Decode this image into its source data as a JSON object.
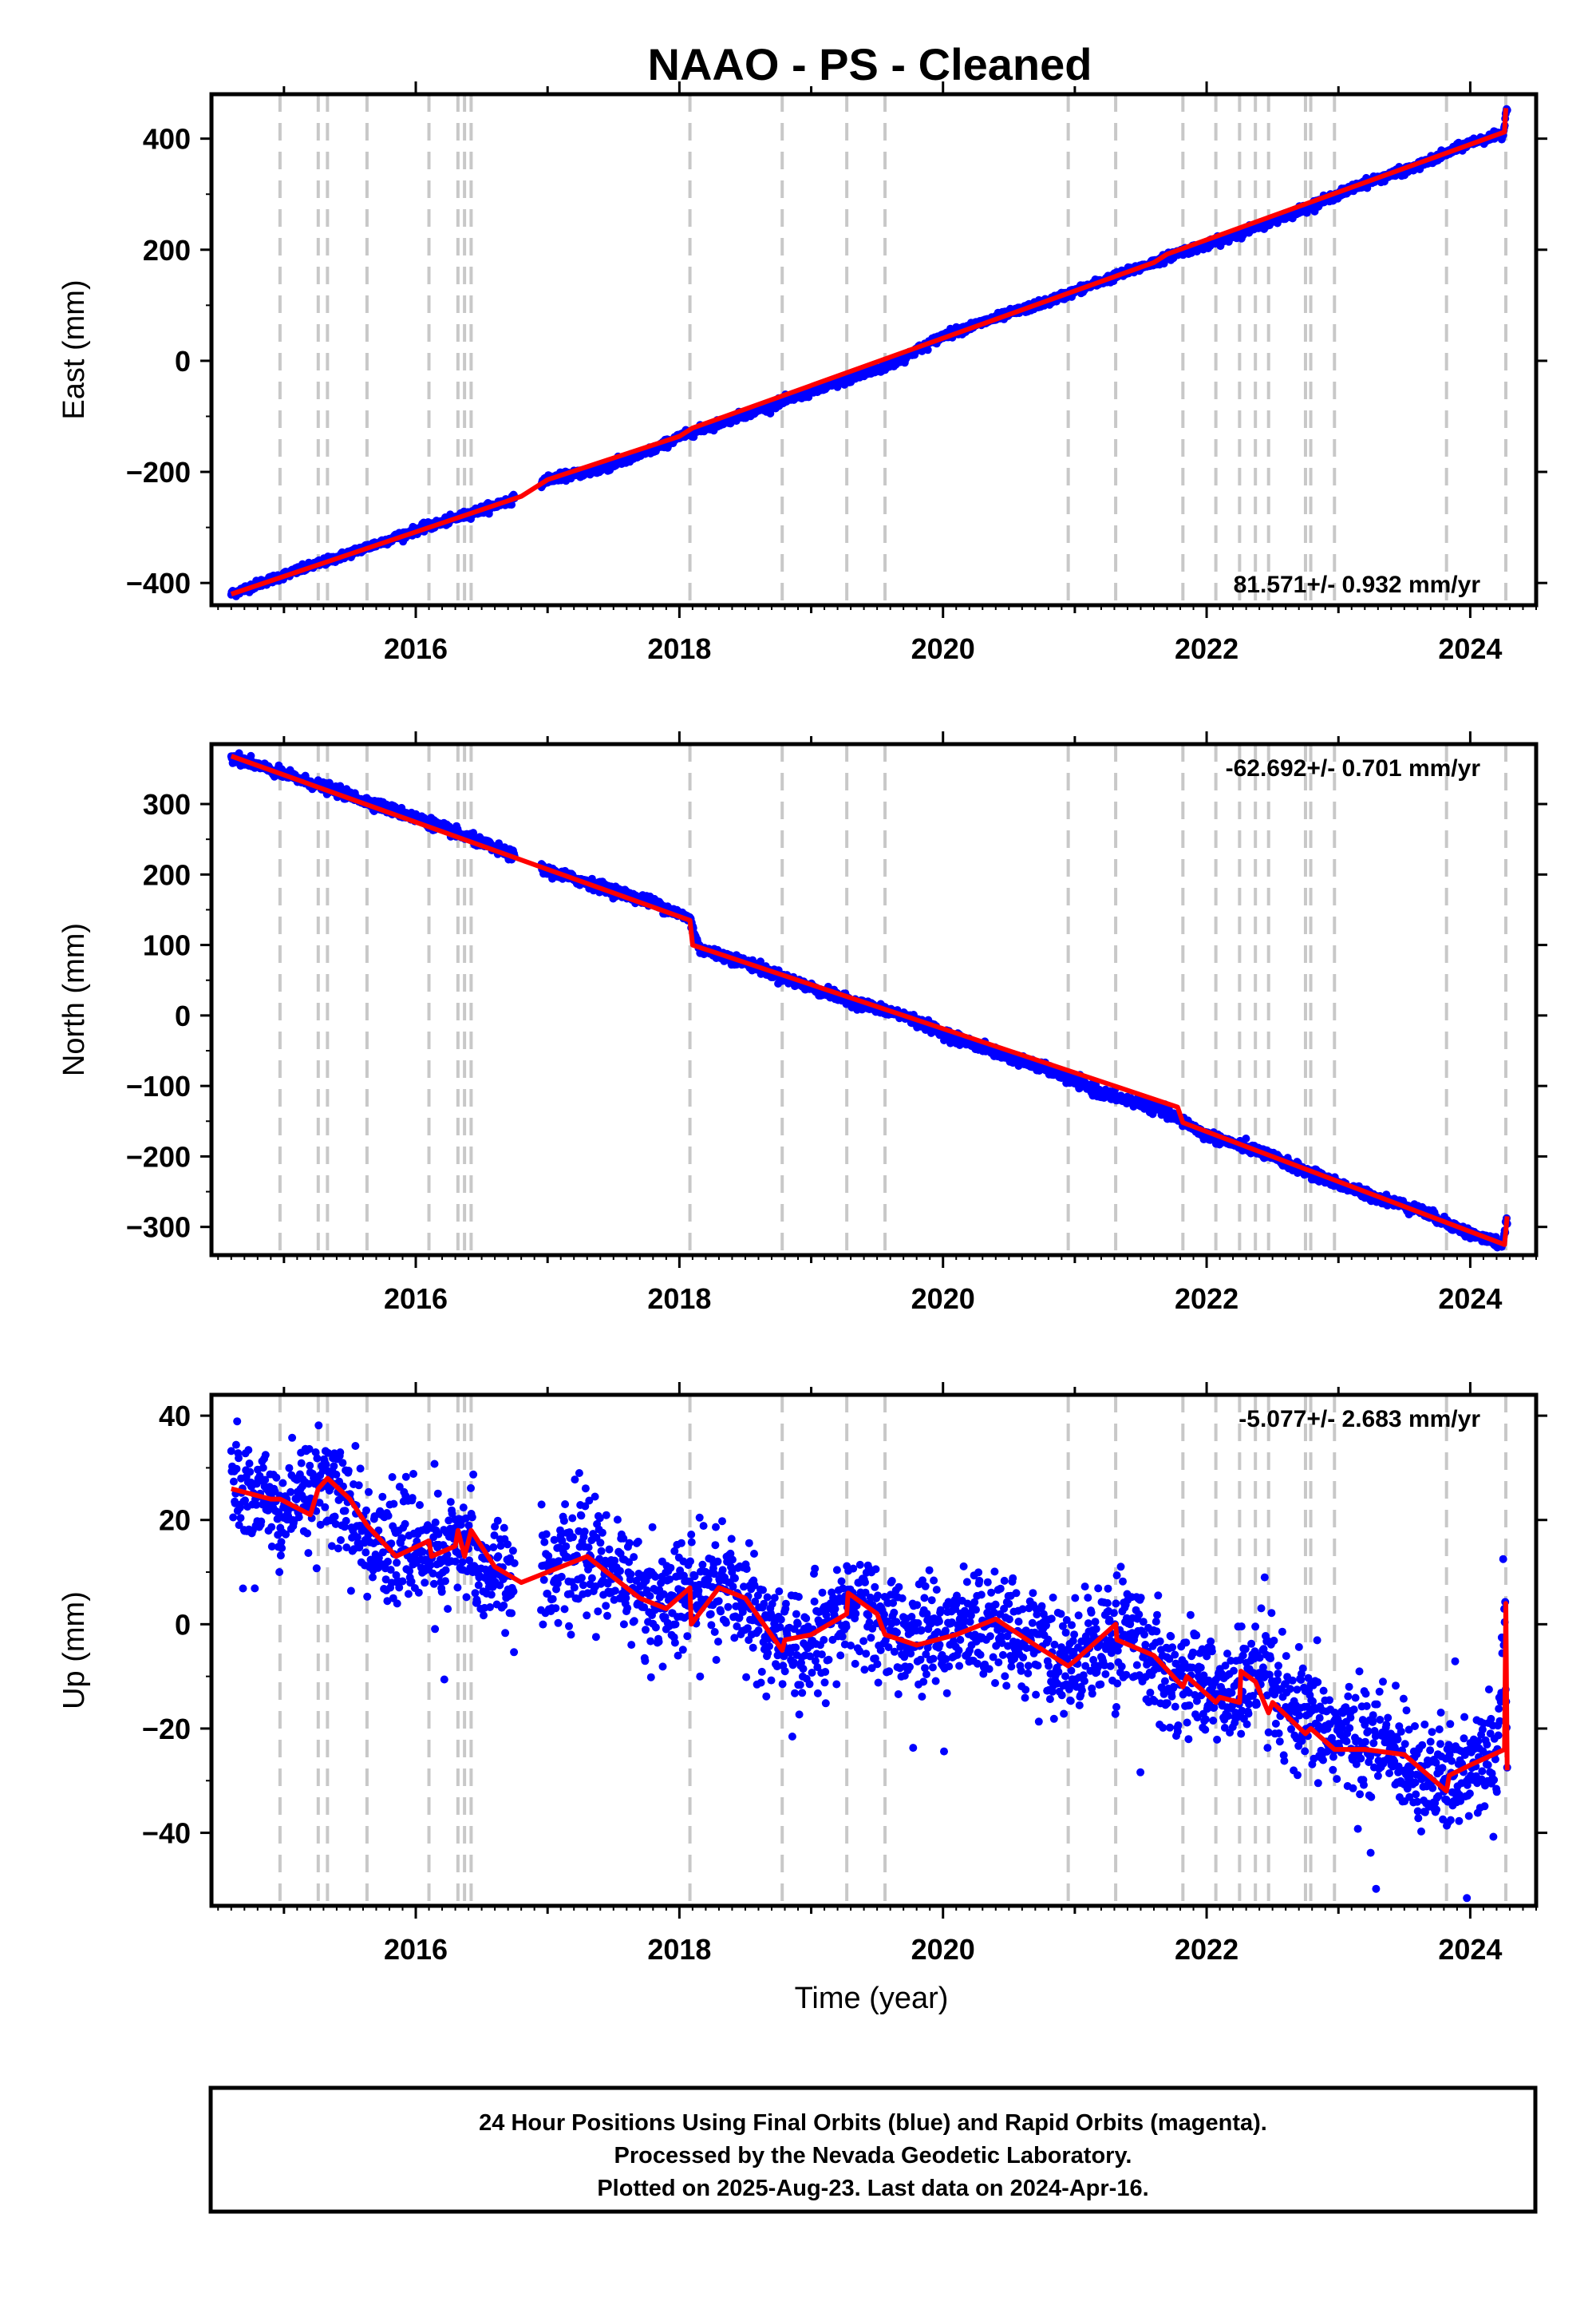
{
  "title": "NAAO  - PS - Cleaned",
  "x_label": "Time (year)",
  "footer": {
    "line1": "24 Hour Positions Using Final Orbits (blue) and Rapid Orbits (magenta).",
    "line2": "Processed by the Nevada Geodetic Laboratory.",
    "line3": "Plotted on 2025-Aug-23. Last data on 2024-Apr-16."
  },
  "colors": {
    "points": "#0000ff",
    "model": "#ff0000",
    "event_lines": "#c8c8c8",
    "frame": "#000000"
  },
  "chart_data": [
    {
      "type": "scatter",
      "panel": "east",
      "ylabel": "East (mm)",
      "rate_text": "81.571+/- 0.932 mm/yr",
      "xlim": [
        2014.45,
        2024.5
      ],
      "ylim": [
        -440,
        480
      ],
      "yticks": [
        -400,
        -200,
        0,
        200,
        400
      ],
      "xticks": [
        2016,
        2018,
        2020,
        2022,
        2024
      ],
      "series": [
        {
          "role": "daily_positions",
          "x": [
            2014.6,
            2014.8,
            2015.0,
            2015.2,
            2015.4,
            2015.6,
            2015.8,
            2016.0,
            2016.2,
            2016.4,
            2016.6,
            2016.8,
            2017.0,
            2017.4,
            2017.8,
            2018.0,
            2018.4,
            2018.8,
            2019.2,
            2019.6,
            2020.0,
            2020.4,
            2020.8,
            2021.2,
            2021.6,
            2021.8,
            2022.0,
            2022.4,
            2022.8,
            2023.2,
            2023.6,
            2024.0,
            2024.25,
            2024.28
          ],
          "y": [
            -420,
            -402,
            -386,
            -370,
            -355,
            -338,
            -322,
            -305,
            -291,
            -276,
            -260,
            -244,
            -213,
            -196,
            -160,
            -137,
            -104,
            -72,
            -40,
            -8,
            45,
            77,
            107,
            143,
            177,
            196,
            208,
            243,
            280,
            320,
            350,
            393,
            408,
            460
          ]
        },
        {
          "role": "model",
          "x": [
            2014.6,
            2016.8,
            2017.0,
            2018.0,
            2018.1,
            2021.6,
            2021.7,
            2024.26,
            2024.27
          ],
          "y": [
            -420,
            -244,
            -214,
            -136,
            -121,
            177,
            192,
            412,
            455
          ]
        }
      ],
      "event_lines": [
        2014.97,
        2015.26,
        2015.33,
        2015.63,
        2016.1,
        2016.32,
        2016.37,
        2016.42,
        2018.08,
        2018.78,
        2019.27,
        2019.56,
        2020.95,
        2021.31,
        2021.82,
        2022.07,
        2022.25,
        2022.37,
        2022.47,
        2022.75,
        2022.79,
        2022.97,
        2023.82,
        2024.27
      ]
    },
    {
      "type": "scatter",
      "panel": "north",
      "ylabel": "North (mm)",
      "rate_text": "-62.692+/- 0.701 mm/yr",
      "xlim": [
        2014.45,
        2024.5
      ],
      "ylim": [
        -340,
        385
      ],
      "yticks": [
        -300,
        -200,
        -100,
        0,
        100,
        200,
        300
      ],
      "xticks": [
        2016,
        2018,
        2020,
        2022,
        2024
      ],
      "series": [
        {
          "role": "daily_positions",
          "x": [
            2014.6,
            2014.9,
            2015.2,
            2015.5,
            2015.8,
            2016.1,
            2016.4,
            2016.7,
            2017.0,
            2017.4,
            2017.8,
            2018.08,
            2018.15,
            2018.5,
            2018.9,
            2019.3,
            2019.7,
            2020.0,
            2020.4,
            2020.8,
            2021.2,
            2021.6,
            2021.8,
            2022.0,
            2022.4,
            2022.8,
            2023.2,
            2023.6,
            2024.0,
            2024.25,
            2024.28
          ],
          "y": [
            368,
            348,
            330,
            312,
            293,
            274,
            252,
            230,
            205,
            183,
            160,
            137,
            95,
            75,
            46,
            20,
            0,
            -25,
            -52,
            -77,
            -110,
            -130,
            -148,
            -170,
            -193,
            -225,
            -253,
            -275,
            -310,
            -325,
            -285
          ]
        },
        {
          "role": "model",
          "x": [
            2014.6,
            2018.08,
            2018.1,
            2021.78,
            2021.82,
            2024.26,
            2024.28
          ],
          "y": [
            368,
            135,
            100,
            -130,
            -152,
            -325,
            -285
          ]
        }
      ],
      "event_lines": [
        2014.97,
        2015.26,
        2015.33,
        2015.63,
        2016.1,
        2016.32,
        2016.37,
        2016.42,
        2018.08,
        2018.78,
        2019.27,
        2019.56,
        2020.95,
        2021.31,
        2021.82,
        2022.07,
        2022.25,
        2022.37,
        2022.47,
        2022.75,
        2022.79,
        2022.97,
        2023.82,
        2024.27
      ]
    },
    {
      "type": "scatter",
      "panel": "up",
      "ylabel": "Up (mm)",
      "rate_text": "-5.077+/- 2.683 mm/yr",
      "xlim": [
        2014.45,
        2024.5
      ],
      "ylim": [
        -54,
        44
      ],
      "yticks": [
        -40,
        -20,
        0,
        20,
        40
      ],
      "xticks": [
        2016,
        2018,
        2020,
        2022,
        2024
      ],
      "series": [
        {
          "role": "daily_positions",
          "x": [
            2014.6,
            2014.7,
            2014.85,
            2015.0,
            2015.15,
            2015.3,
            2015.45,
            2015.6,
            2015.8,
            2016.0,
            2016.2,
            2016.4,
            2016.55,
            2016.9,
            2017.1,
            2017.3,
            2017.6,
            2017.8,
            2018.0,
            2018.2,
            2018.4,
            2018.6,
            2018.85,
            2019.1,
            2019.3,
            2019.5,
            2019.8,
            2020.0,
            2020.3,
            2020.6,
            2020.9,
            2021.1,
            2021.4,
            2021.6,
            2021.75,
            2022.0,
            2022.2,
            2022.4,
            2022.6,
            2022.8,
            2023.0,
            2023.3,
            2023.6,
            2023.8,
            2024.0,
            2024.2,
            2024.26,
            2024.28
          ],
          "y": [
            27,
            25,
            24,
            22,
            25,
            28,
            24,
            17,
            14,
            15,
            13,
            15,
            10,
            8,
            11,
            13,
            9,
            4,
            5,
            6,
            7,
            1,
            -5,
            -3,
            4,
            0,
            -3,
            -2,
            1,
            -2,
            -8,
            -4,
            -1,
            -6,
            -10,
            -12,
            -14,
            -9,
            -17,
            -19,
            -21,
            -23,
            -27,
            -31,
            -28,
            -25,
            5,
            -27
          ]
        },
        {
          "role": "model",
          "x": [
            2014.6,
            2014.9,
            2014.97,
            2015.2,
            2015.26,
            2015.33,
            2015.5,
            2015.63,
            2015.85,
            2016.1,
            2016.12,
            2016.3,
            2016.32,
            2016.37,
            2016.42,
            2016.6,
            2016.8,
            2017.0,
            2017.3,
            2017.5,
            2017.7,
            2017.9,
            2018.08,
            2018.09,
            2018.3,
            2018.5,
            2018.78,
            2018.8,
            2019.0,
            2019.27,
            2019.28,
            2019.5,
            2019.56,
            2019.8,
            2020.1,
            2020.4,
            2020.7,
            2020.95,
            2021.0,
            2021.31,
            2021.32,
            2021.6,
            2021.82,
            2021.85,
            2022.07,
            2022.1,
            2022.25,
            2022.26,
            2022.37,
            2022.47,
            2022.5,
            2022.75,
            2022.79,
            2022.97,
            2023.2,
            2023.5,
            2023.82,
            2023.84,
            2024.0,
            2024.26,
            2024.27,
            2024.28
          ],
          "y": [
            26,
            24,
            24,
            21,
            26,
            28,
            24,
            19,
            13,
            16,
            13,
            15,
            18,
            13,
            18,
            11,
            8,
            10,
            13,
            9,
            5,
            3,
            7,
            0,
            7,
            5,
            -5,
            -3,
            -2,
            2,
            6,
            2,
            -2,
            -4,
            -2,
            1,
            -4,
            -8,
            -7,
            0,
            -3,
            -6,
            -12,
            -10,
            -15,
            -14,
            -15,
            -9,
            -11,
            -17,
            -15,
            -21,
            -20,
            -24,
            -24,
            -25,
            -32,
            -29,
            -27,
            -24,
            4,
            -28
          ]
        }
      ],
      "event_lines": [
        2014.97,
        2015.26,
        2015.33,
        2015.63,
        2016.1,
        2016.32,
        2016.37,
        2016.42,
        2018.08,
        2018.78,
        2019.27,
        2019.56,
        2020.95,
        2021.31,
        2021.82,
        2022.07,
        2022.25,
        2022.37,
        2022.47,
        2022.75,
        2022.79,
        2022.97,
        2023.82,
        2024.27
      ]
    }
  ]
}
